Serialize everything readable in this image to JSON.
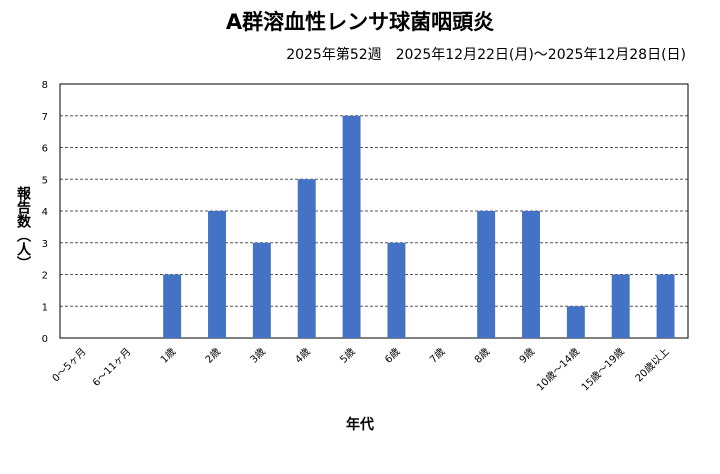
{
  "chart_data": {
    "type": "bar",
    "title": "A群溶血性レンサ球菌咽頭炎",
    "subtitle": "2025年第52週　2025年12月22日(月)～2025年12月28日(日)",
    "xlabel": "年代",
    "ylabel": "報告数（人）",
    "ylim": [
      0,
      8
    ],
    "yticks": [
      0,
      1,
      2,
      3,
      4,
      5,
      6,
      7,
      8
    ],
    "grid": true,
    "categories": [
      "0～5ヶ月",
      "6～11ヶ月",
      "1歳",
      "2歳",
      "3歳",
      "4歳",
      "5歳",
      "6歳",
      "7歳",
      "8歳",
      "9歳",
      "10歳～14歳",
      "15歳～19歳",
      "20歳以上"
    ],
    "values": [
      0,
      0,
      2,
      4,
      3,
      5,
      7,
      3,
      0,
      4,
      4,
      1,
      2,
      2
    ],
    "bar_color": "#4472c4"
  }
}
